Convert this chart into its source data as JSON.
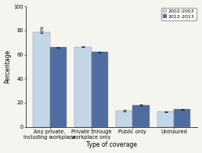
{
  "categories": [
    "Any private,\nincluding workplace",
    "Private through\nworkplace only",
    "Public only",
    "Uninsured"
  ],
  "series": [
    {
      "label": "2002-2003",
      "values": [
        78.5,
        66.5,
        13.5,
        12.5
      ],
      "errors": [
        0.5,
        0.5,
        0.4,
        0.4
      ],
      "color": "#c5d5e8"
    },
    {
      "label": "2012-2013",
      "values": [
        66.0,
        62.0,
        18.0,
        14.5
      ],
      "errors": [
        0.4,
        0.4,
        0.4,
        0.4
      ],
      "color": "#4f6da0"
    }
  ],
  "xlabel": "Type of coverage",
  "ylabel": "Percentage",
  "ylim": [
    0,
    100
  ],
  "yticks": [
    0,
    20,
    40,
    60,
    80,
    100
  ],
  "annotation": "b",
  "bar_width": 0.28,
  "group_positions": [
    0.35,
    1.05,
    1.75,
    2.45
  ],
  "background_color": "#f5f5f0",
  "legend_loc": "upper right",
  "axis_fontsize": 5.5,
  "tick_fontsize": 4.8,
  "legend_fontsize": 4.5
}
